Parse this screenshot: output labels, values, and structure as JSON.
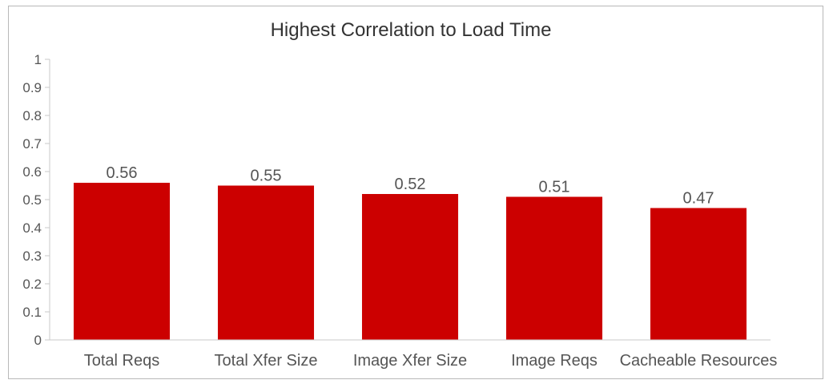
{
  "chart_data": {
    "type": "bar",
    "title": "Highest Correlation to Load Time",
    "xlabel": "",
    "ylabel": "",
    "categories": [
      "Total Reqs",
      "Total Xfer Size",
      "Image Xfer Size",
      "Image Reqs",
      "Cacheable Resources"
    ],
    "values": [
      0.56,
      0.55,
      0.52,
      0.51,
      0.47
    ],
    "value_labels": [
      "0.56",
      "0.55",
      "0.52",
      "0.51",
      "0.47"
    ],
    "ylim": [
      0,
      1
    ],
    "yticks": [
      "0",
      "0.1",
      "0.2",
      "0.3",
      "0.4",
      "0.5",
      "0.6",
      "0.7",
      "0.8",
      "0.9",
      "1"
    ],
    "bar_color": "#cc0000",
    "grid": false,
    "legend": "none"
  }
}
